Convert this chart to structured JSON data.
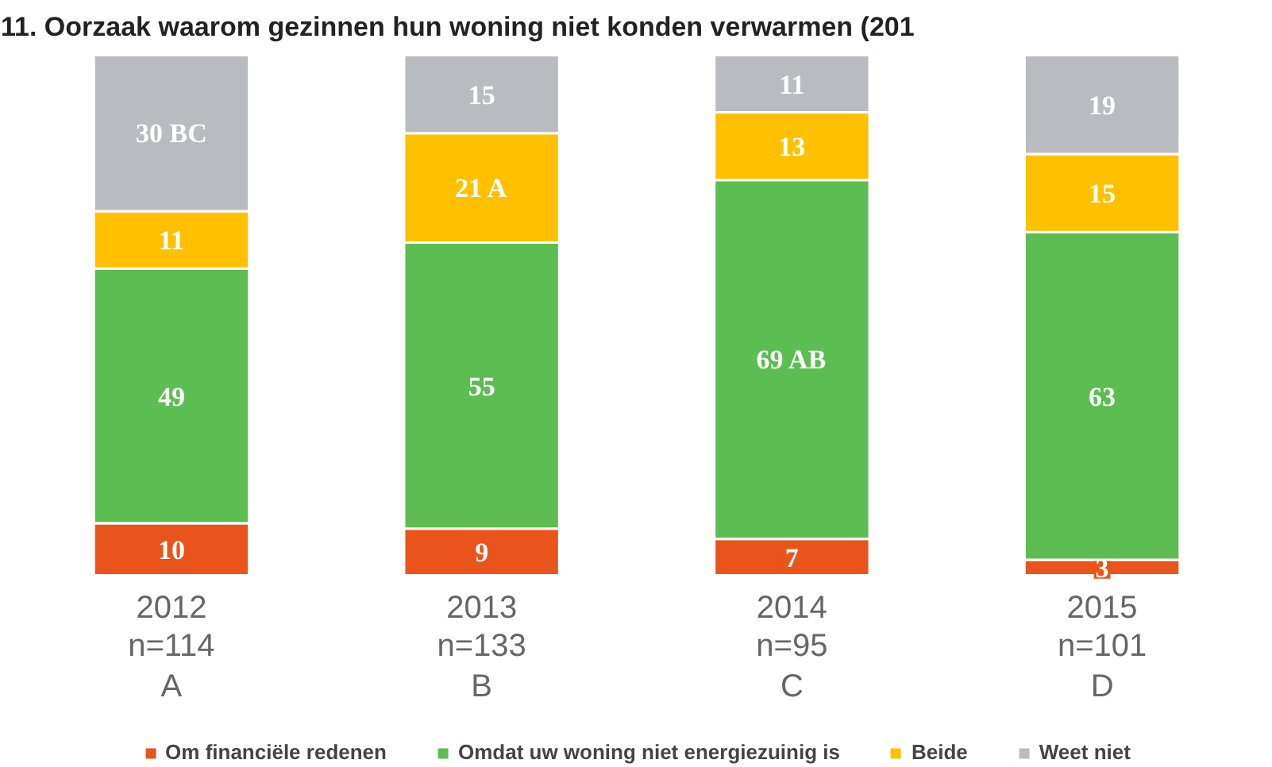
{
  "chart_data": {
    "type": "bar",
    "stacked": true,
    "title": "11. Oorzaak waarom gezinnen hun woning niet konden verwarmen (201",
    "categories": [
      "2012\nn=114\nA",
      "2013\nn=133\nB",
      "2014\nn=95\nC",
      "2015\nn=101\nD"
    ],
    "series": [
      {
        "name": "Om financiële redenen",
        "color": "#e8541c",
        "values": [
          10,
          9,
          7,
          3
        ],
        "value_labels": [
          "10",
          "9",
          "7",
          "3"
        ]
      },
      {
        "name": "Omdat uw woning niet energiezuinig is",
        "color": "#5cbd52",
        "values": [
          49,
          55,
          69,
          63
        ],
        "value_labels": [
          "49",
          "55",
          "69 AB",
          "63"
        ]
      },
      {
        "name": "Beide",
        "color": "#ffc000",
        "values": [
          11,
          21,
          13,
          15
        ],
        "value_labels": [
          "11",
          "21 A",
          "13",
          "15"
        ]
      },
      {
        "name": "Weet niet",
        "color": "#b8bcc0",
        "values": [
          30,
          15,
          11,
          19
        ],
        "value_labels": [
          "30 BC",
          "15",
          "11",
          "19"
        ]
      }
    ],
    "legend": "bottom",
    "grid": false
  }
}
